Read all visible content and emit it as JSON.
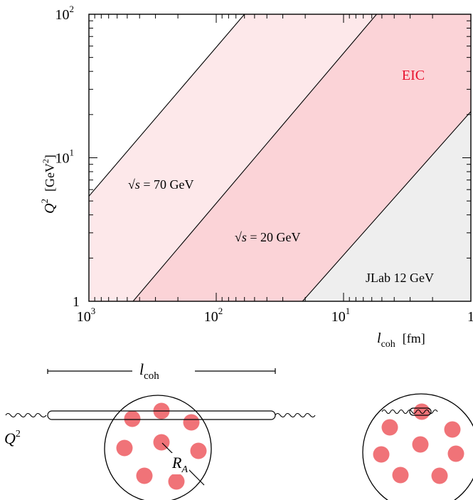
{
  "chart_data": {
    "type": "area",
    "x_scale": "log",
    "y_scale": "log",
    "x_reversed": true,
    "xlim": [
      1000,
      1
    ],
    "ylim": [
      1,
      100
    ],
    "xlabel": "l_coh [fm]",
    "ylabel": "Q^2 [GeV^2]",
    "x_ticks": [
      {
        "value": 1000,
        "base": "10",
        "exp": "3"
      },
      {
        "value": 100,
        "base": "10",
        "exp": "2"
      },
      {
        "value": 10,
        "base": "10",
        "exp": "1"
      },
      {
        "value": 1,
        "base": "1",
        "exp": ""
      }
    ],
    "y_ticks": [
      {
        "value": 1,
        "base": "1",
        "exp": ""
      },
      {
        "value": 10,
        "base": "10",
        "exp": "1"
      },
      {
        "value": 100,
        "base": "10",
        "exp": "2"
      }
    ],
    "boundary_lines": [
      {
        "name": "√s = 70 GeV",
        "points": [
          [
            1000,
            5.4
          ],
          [
            60,
            100
          ]
        ]
      },
      {
        "name": "√s = 20 GeV",
        "points": [
          [
            450,
            1
          ],
          [
            5.5,
            100
          ]
        ]
      },
      {
        "name": "JLab 12 GeV",
        "points": [
          [
            21,
            1
          ],
          [
            1,
            21
          ]
        ]
      }
    ],
    "regions": [
      {
        "label": "EIC",
        "color": "#fde8ea",
        "between": [
          "√s = 70 GeV",
          "√s = 20 GeV"
        ]
      },
      {
        "label": "EIC",
        "color": "#fbd3d7",
        "between": [
          "√s = 20 GeV",
          "JLab 12 GeV"
        ]
      },
      {
        "label": "JLab 12 GeV",
        "color": "#eeeeee",
        "between": [
          "JLab 12 GeV",
          "edge"
        ]
      }
    ],
    "annotations": [
      {
        "text": "EIC",
        "color": "#e8112d"
      },
      {
        "text": "JLab 12 GeV"
      },
      {
        "sqrt": "√",
        "s": "s",
        "rest": " = 70 GeV"
      },
      {
        "sqrt": "√",
        "s": "s",
        "rest": " = 20 GeV"
      }
    ],
    "grid": false
  },
  "diagram": {
    "lcoh_symbol": "l",
    "lcoh_sub": "coh",
    "q2_symbol": "Q",
    "q2_exp": "2",
    "radius_symbol": "R",
    "radius_sub": "A",
    "nucleon_color": "#f07378"
  },
  "axis_text": {
    "x_sym": "l",
    "x_sub": "coh",
    "x_unit": "[fm]",
    "y_sym": "Q",
    "y_exp": "2",
    "y_unit_pre": "[GeV",
    "y_unit_exp": "2",
    "y_unit_post": "]"
  }
}
